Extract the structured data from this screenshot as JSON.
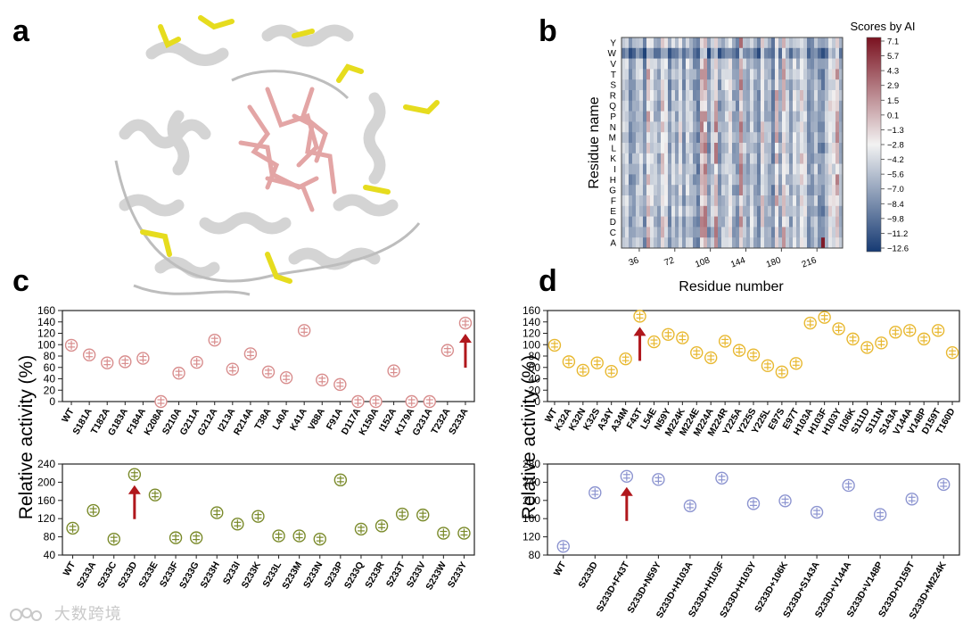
{
  "panel_labels": {
    "a": "a",
    "b": "b",
    "c": "c",
    "d": "d"
  },
  "protein_image_label": "protein cartoon structure",
  "heatmap": {
    "ylabel": "Residue name",
    "xlabel": "Residue number",
    "residues": [
      "Y",
      "W",
      "V",
      "T",
      "S",
      "R",
      "Q",
      "P",
      "N",
      "M",
      "L",
      "K",
      "I",
      "H",
      "G",
      "F",
      "E",
      "D",
      "C",
      "A"
    ],
    "xticks": [
      "36",
      "72",
      "108",
      "144",
      "180",
      "216"
    ],
    "colorbar_title": "Scores by AI",
    "colorbar_ticks": [
      "7.1",
      "5.7",
      "4.3",
      "2.9",
      "1.5",
      "0.1",
      "−1.3",
      "−2.8",
      "−4.2",
      "−5.6",
      "−7.0",
      "−8.4",
      "−9.8",
      "−11.2",
      "−12.6"
    ],
    "range": [
      -12.6,
      7.1
    ],
    "colors": {
      "high": "#7a1220",
      "mid": "#f2f2f2",
      "low": "#163a73"
    }
  },
  "ylabel": "Relative activity (%)",
  "chart_data": [
    {
      "id": "c-top",
      "type": "scatter",
      "color": "#d88d8d",
      "categories": [
        "WT",
        "S181A",
        "T182A",
        "G183A",
        "F184A",
        "K208A",
        "S210A",
        "G211A",
        "G212A",
        "I213A",
        "R214A",
        "T38A",
        "L40A",
        "K41A",
        "V88A",
        "F91A",
        "D117A",
        "K150A",
        "I152A",
        "K179A",
        "G231A",
        "T232A",
        "S233A"
      ],
      "values": [
        99,
        82,
        68,
        70,
        76,
        0,
        50,
        69,
        108,
        57,
        84,
        52,
        42,
        125,
        38,
        30,
        0,
        0,
        54,
        0,
        0,
        90,
        138
      ],
      "ylim": [
        0,
        160
      ],
      "yticks": [
        0,
        20,
        40,
        60,
        80,
        100,
        120,
        140,
        160
      ],
      "arrow_category": "S233A"
    },
    {
      "id": "c-bottom",
      "type": "scatter",
      "color": "#7a8a2a",
      "categories": [
        "WT",
        "S233A",
        "S233C",
        "S233D",
        "S233E",
        "S233F",
        "S233G",
        "S233H",
        "S233I",
        "S233K",
        "S233L",
        "S233M",
        "S233N",
        "S233P",
        "S233Q",
        "S233R",
        "S233T",
        "S233V",
        "S233W",
        "S233Y"
      ],
      "values": [
        99,
        138,
        75,
        217,
        172,
        78,
        78,
        133,
        108,
        125,
        82,
        82,
        75,
        205,
        97,
        104,
        130,
        128,
        88,
        88
      ],
      "ylim": [
        40,
        240
      ],
      "yticks": [
        40,
        80,
        120,
        160,
        200,
        240
      ],
      "arrow_category": "S233D"
    },
    {
      "id": "d-top",
      "type": "scatter",
      "color": "#e8b830",
      "categories": [
        "WT",
        "K32A",
        "K32N",
        "K32S",
        "A34Y",
        "A34M",
        "F43T",
        "L54E",
        "N59Y",
        "M224K",
        "M224E",
        "M224A",
        "M224R",
        "Y225A",
        "Y225S",
        "Y225L",
        "E97S",
        "E97T",
        "H103A",
        "H103F",
        "H103Y",
        "I106K",
        "S111D",
        "S111N",
        "S143A",
        "V144A",
        "V148P",
        "D159T",
        "T160D"
      ],
      "values": [
        99,
        70,
        55,
        68,
        53,
        75,
        150,
        105,
        118,
        112,
        86,
        77,
        106,
        90,
        82,
        63,
        52,
        67,
        138,
        148,
        128,
        110,
        95,
        103,
        122,
        125,
        110,
        125,
        86
      ],
      "ylim": [
        0,
        160
      ],
      "yticks": [
        0,
        20,
        40,
        60,
        80,
        100,
        120,
        140,
        160
      ],
      "arrow_category": "F43T"
    },
    {
      "id": "d-bottom",
      "type": "scatter",
      "color": "#8c94d0",
      "categories": [
        "WT",
        "S233D",
        "S233D+F43T",
        "S233D+N59Y",
        "S233D+H103A",
        "S233D+H103F",
        "S233D+H103Y",
        "S233D+106K",
        "S233D+S143A",
        "S233D+V144A",
        "S233D+V148P",
        "S233D+D159T",
        "S233D+M224K"
      ],
      "values": [
        99,
        217,
        253,
        246,
        188,
        249,
        193,
        199,
        174,
        233,
        169,
        203,
        235
      ],
      "ylim": [
        80,
        280
      ],
      "yticks": [
        80,
        120,
        160,
        200,
        240,
        280
      ],
      "arrow_category": "S233D+F43T"
    }
  ],
  "watermark": "大数跨境"
}
